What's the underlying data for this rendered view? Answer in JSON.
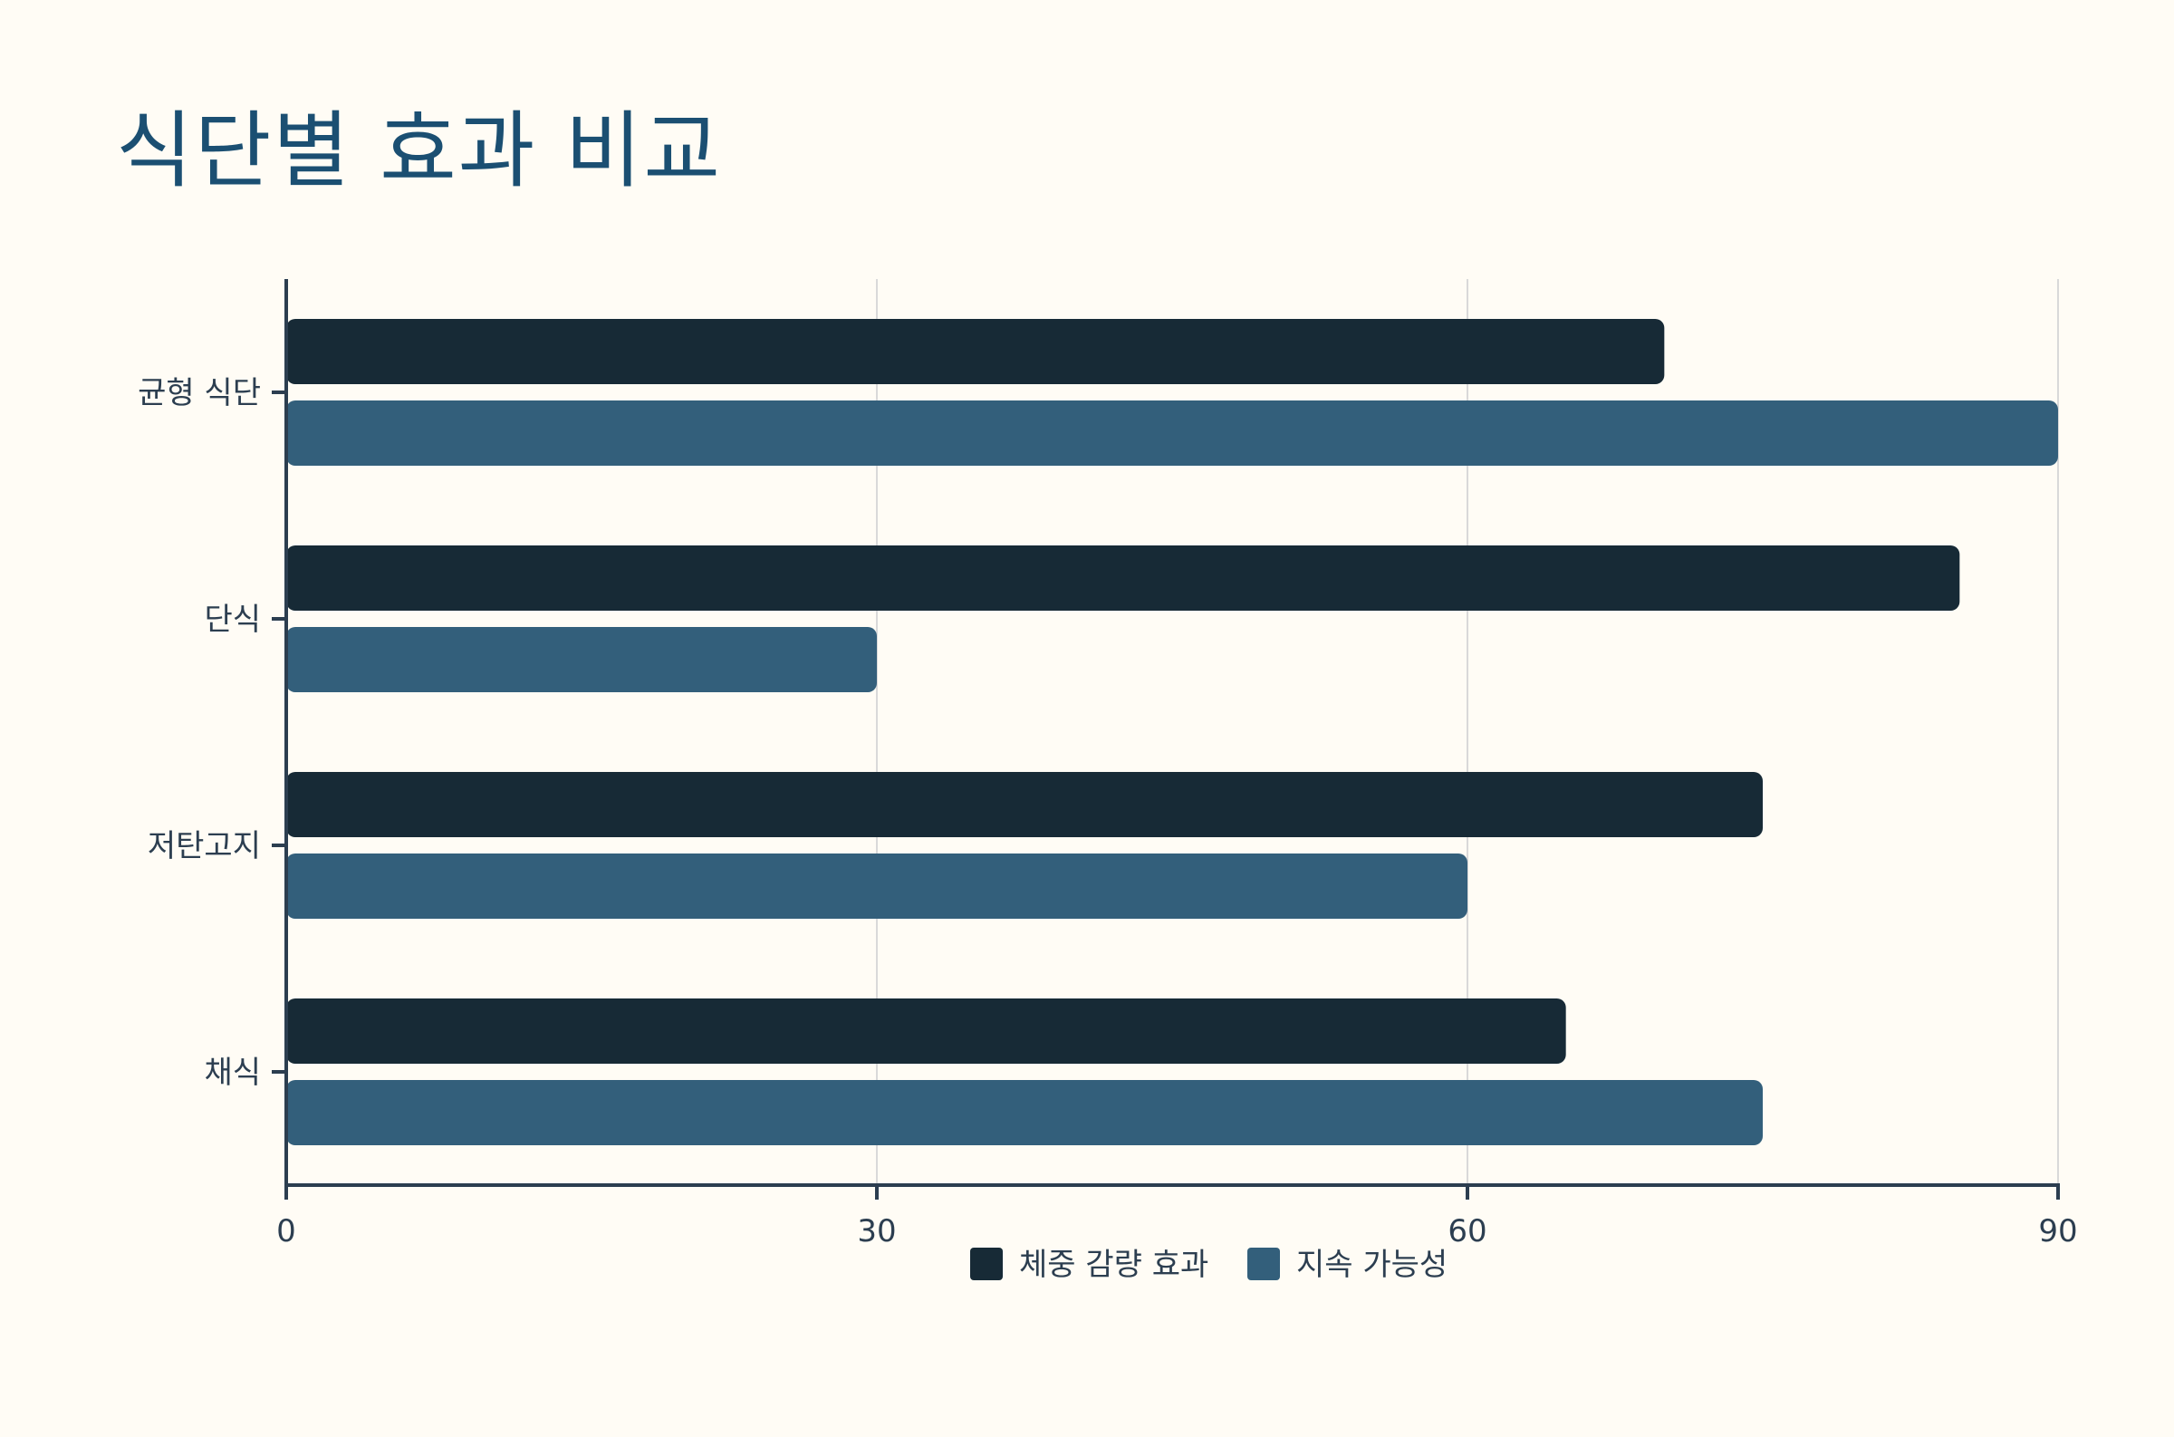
{
  "chart_data": {
    "type": "bar",
    "orientation": "horizontal",
    "title": "식단별 효과 비교",
    "categories": [
      "균형 식단",
      "단식",
      "저탄고지",
      "채식"
    ],
    "series": [
      {
        "name": "체중 감량 효과",
        "values": [
          70,
          85,
          75,
          65
        ],
        "color": "#172A36"
      },
      {
        "name": "지속 가능성",
        "values": [
          90,
          30,
          60,
          75
        ],
        "color": "#335F7B"
      }
    ],
    "xlim": [
      0,
      90
    ],
    "xticks": [
      0,
      30,
      60,
      90
    ],
    "xlabel": "",
    "ylabel": "",
    "grid": "vertical",
    "legend": "bottom-center",
    "colors": {
      "background": "#FFFCF5",
      "title": "#1B4F72",
      "axis": "#2C3E50",
      "grid": "#D9D9D9"
    }
  }
}
